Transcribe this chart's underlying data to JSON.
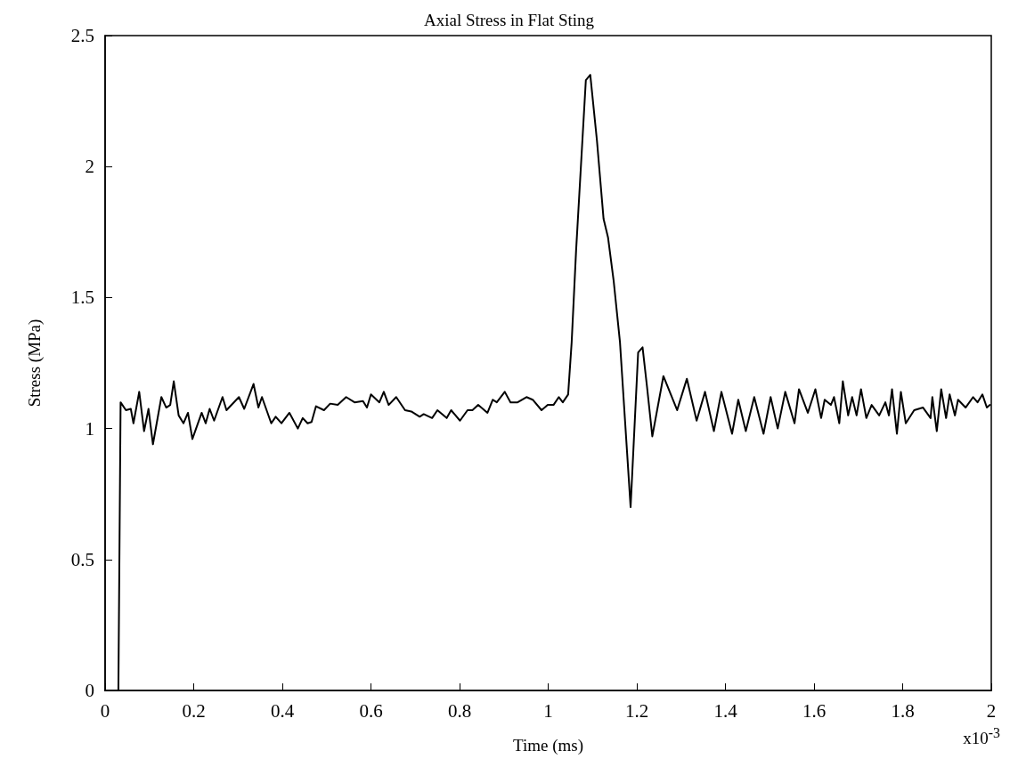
{
  "chart_data": {
    "type": "line",
    "title": "Axial Stress in Flat Sting",
    "xlabel": "Time (ms)",
    "ylabel": "Stress (MPa)",
    "annotations": [
      "x10$^{-3}$"
    ],
    "x": [
      0,
      0.03,
      0.035,
      0.047,
      0.058,
      0.064,
      0.077,
      0.088,
      0.098,
      0.108,
      0.127,
      0.138,
      0.147,
      0.155,
      0.166,
      0.177,
      0.187,
      0.197,
      0.218,
      0.227,
      0.236,
      0.246,
      0.265,
      0.274,
      0.302,
      0.314,
      0.335,
      0.346,
      0.354,
      0.375,
      0.385,
      0.398,
      0.416,
      0.435,
      0.446,
      0.457,
      0.466,
      0.476,
      0.494,
      0.508,
      0.525,
      0.544,
      0.563,
      0.582,
      0.591,
      0.6,
      0.619,
      0.629,
      0.64,
      0.657,
      0.677,
      0.691,
      0.71,
      0.719,
      0.738,
      0.75,
      0.771,
      0.781,
      0.801,
      0.818,
      0.829,
      0.842,
      0.863,
      0.875,
      0.884,
      0.902,
      0.915,
      0.931,
      0.951,
      0.965,
      0.985,
      0.999,
      1.012,
      1.024,
      1.033,
      1.045,
      1.053,
      1.063,
      1.085,
      1.095,
      1.11,
      1.125,
      1.135,
      1.148,
      1.162,
      1.186,
      1.203,
      1.213,
      1.223,
      1.235,
      1.26,
      1.291,
      1.313,
      1.335,
      1.354,
      1.374,
      1.391,
      1.415,
      1.429,
      1.446,
      1.465,
      1.486,
      1.502,
      1.518,
      1.535,
      1.556,
      1.566,
      1.586,
      1.603,
      1.616,
      1.624,
      1.638,
      1.645,
      1.657,
      1.665,
      1.677,
      1.686,
      1.696,
      1.706,
      1.718,
      1.73,
      1.747,
      1.761,
      1.769,
      1.776,
      1.787,
      1.796,
      1.807,
      1.826,
      1.846,
      1.863,
      1.867,
      1.877,
      1.887,
      1.898,
      1.906,
      1.918,
      1.925,
      1.942,
      1.959,
      1.969,
      1.98,
      1.99,
      1.997
    ],
    "series": [
      {
        "color": "#000000",
        "values": [
          0,
          0,
          1.1,
          1.07,
          1.075,
          1.02,
          1.14,
          0.99,
          1.075,
          0.94,
          1.12,
          1.08,
          1.09,
          1.18,
          1.05,
          1.02,
          1.06,
          0.96,
          1.06,
          1.02,
          1.075,
          1.03,
          1.12,
          1.07,
          1.12,
          1.075,
          1.17,
          1.08,
          1.12,
          1.02,
          1.045,
          1.02,
          1.06,
          1.0,
          1.04,
          1.02,
          1.025,
          1.085,
          1.07,
          1.095,
          1.09,
          1.12,
          1.1,
          1.105,
          1.08,
          1.13,
          1.1,
          1.14,
          1.09,
          1.12,
          1.07,
          1.065,
          1.045,
          1.055,
          1.04,
          1.07,
          1.04,
          1.07,
          1.03,
          1.07,
          1.07,
          1.09,
          1.06,
          1.11,
          1.1,
          1.14,
          1.1,
          1.1,
          1.12,
          1.11,
          1.07,
          1.09,
          1.09,
          1.12,
          1.1,
          1.13,
          1.33,
          1.68,
          2.33,
          2.35,
          2.1,
          1.8,
          1.73,
          1.56,
          1.33,
          0.7,
          1.29,
          1.31,
          1.16,
          0.97,
          1.2,
          1.07,
          1.19,
          1.03,
          1.14,
          0.99,
          1.14,
          0.98,
          1.11,
          0.99,
          1.12,
          0.98,
          1.12,
          1.0,
          1.14,
          1.02,
          1.15,
          1.06,
          1.15,
          1.04,
          1.11,
          1.09,
          1.12,
          1.02,
          1.18,
          1.05,
          1.12,
          1.05,
          1.15,
          1.04,
          1.09,
          1.05,
          1.1,
          1.05,
          1.15,
          0.98,
          1.14,
          1.02,
          1.07,
          1.08,
          1.04,
          1.12,
          0.99,
          1.15,
          1.04,
          1.13,
          1.05,
          1.11,
          1.08,
          1.12,
          1.1,
          1.13,
          1.08,
          1.09
        ]
      }
    ],
    "xlim": [
      0,
      2
    ],
    "xticks": [
      0,
      0.2,
      0.4,
      0.6,
      0.8,
      1,
      1.2,
      1.4,
      1.6,
      1.8,
      2
    ],
    "ylim": [
      0,
      2.5
    ],
    "yticks": [
      0,
      0.5,
      1,
      1.5,
      2,
      2.5
    ],
    "grid": false,
    "marker": "none",
    "line_style": "solid"
  }
}
